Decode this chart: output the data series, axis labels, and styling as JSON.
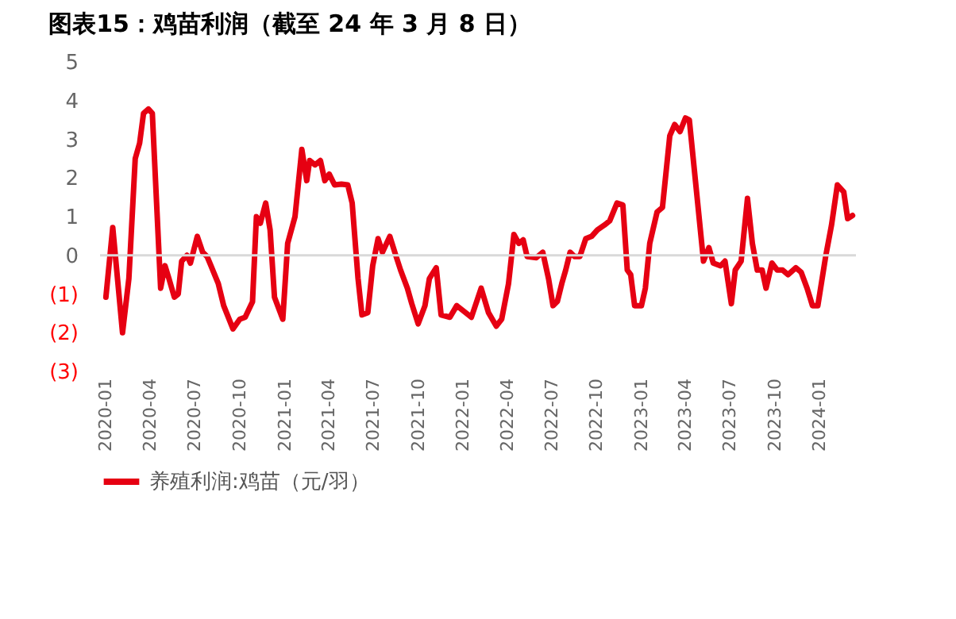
{
  "chart_data": {
    "type": "line",
    "title": "图表15：鸡苗利润（截至 24 年 3 月 8 日）",
    "x": [
      "2020-01-01",
      "2020-01-15",
      "2020-02-04",
      "2020-02-17",
      "2020-03-01",
      "2020-03-10",
      "2020-03-18",
      "2020-03-28",
      "2020-04-05",
      "2020-04-22",
      "2020-05-01",
      "2020-05-09",
      "2020-05-20",
      "2020-05-28",
      "2020-06-04",
      "2020-06-15",
      "2020-06-22",
      "2020-07-06",
      "2020-07-17",
      "2020-07-26",
      "2020-08-03",
      "2020-08-18",
      "2020-08-29",
      "2020-09-17",
      "2020-10-01",
      "2020-10-12",
      "2020-10-27",
      "2020-11-04",
      "2020-11-12",
      "2020-11-23",
      "2020-12-02",
      "2020-12-11",
      "2020-12-28",
      "2021-01-07",
      "2021-01-22",
      "2021-02-05",
      "2021-02-15",
      "2021-02-21",
      "2021-03-04",
      "2021-03-15",
      "2021-03-24",
      "2021-04-02",
      "2021-04-13",
      "2021-04-27",
      "2021-05-10",
      "2021-05-19",
      "2021-05-31",
      "2021-06-08",
      "2021-06-20",
      "2021-06-30",
      "2021-07-11",
      "2021-07-20",
      "2021-08-04",
      "2021-08-17",
      "2021-08-26",
      "2021-09-09",
      "2021-09-18",
      "2021-10-01",
      "2021-10-15",
      "2021-10-24",
      "2021-11-07",
      "2021-11-17",
      "2021-12-05",
      "2021-12-19",
      "2022-01-18",
      "2022-02-07",
      "2022-02-22",
      "2022-03-10",
      "2022-03-21",
      "2022-04-04",
      "2022-04-15",
      "2022-04-25",
      "2022-05-04",
      "2022-05-12",
      "2022-05-31",
      "2022-06-13",
      "2022-06-25",
      "2022-07-04",
      "2022-07-13",
      "2022-07-22",
      "2022-07-30",
      "2022-08-08",
      "2022-08-17",
      "2022-08-28",
      "2022-09-09",
      "2022-09-21",
      "2022-10-03",
      "2022-10-17",
      "2022-10-28",
      "2022-11-12",
      "2022-11-24",
      "2022-12-03",
      "2022-12-10",
      "2022-12-18",
      "2023-01-01",
      "2023-01-09",
      "2023-01-18",
      "2023-02-02",
      "2023-02-13",
      "2023-02-28",
      "2023-03-10",
      "2023-03-21",
      "2023-04-01",
      "2023-04-09",
      "2023-05-08",
      "2023-05-19",
      "2023-05-28",
      "2023-06-12",
      "2023-06-21",
      "2023-07-04",
      "2023-07-12",
      "2023-07-24",
      "2023-08-06",
      "2023-08-16",
      "2023-08-26",
      "2023-09-05",
      "2023-09-13",
      "2023-09-25",
      "2023-10-06",
      "2023-10-17",
      "2023-10-28",
      "2023-11-13",
      "2023-11-24",
      "2023-12-06",
      "2023-12-17",
      "2023-12-28",
      "2024-01-13",
      "2024-01-25",
      "2024-02-06",
      "2024-02-19",
      "2024-02-27",
      "2024-03-08"
    ],
    "series": [
      {
        "name": "养殖利润:鸡苗（元/羽）",
        "color": "#e60012",
        "values": [
          -1.08,
          0.72,
          -2.0,
          -0.6,
          2.5,
          2.9,
          3.67,
          3.78,
          3.67,
          -0.85,
          -0.27,
          -0.6,
          -1.08,
          -1.0,
          -0.15,
          0.0,
          -0.2,
          0.49,
          0.08,
          -0.03,
          -0.27,
          -0.73,
          -1.3,
          -1.9,
          -1.65,
          -1.6,
          -1.2,
          1.0,
          0.83,
          1.35,
          0.66,
          -1.08,
          -1.65,
          0.31,
          1.0,
          2.74,
          1.93,
          2.45,
          2.34,
          2.45,
          1.93,
          2.1,
          1.82,
          1.84,
          1.82,
          1.35,
          -0.6,
          -1.54,
          -1.48,
          -0.27,
          0.43,
          0.08,
          0.49,
          -0.03,
          -0.38,
          -0.85,
          -1.25,
          -1.77,
          -1.3,
          -0.6,
          -0.32,
          -1.54,
          -1.6,
          -1.3,
          -1.6,
          -0.85,
          -1.48,
          -1.83,
          -1.65,
          -0.73,
          0.54,
          0.31,
          0.4,
          -0.03,
          -0.06,
          0.08,
          -0.61,
          -1.3,
          -1.19,
          -0.73,
          -0.38,
          0.08,
          -0.03,
          -0.03,
          0.43,
          0.49,
          0.66,
          0.78,
          0.89,
          1.35,
          1.3,
          -0.38,
          -0.5,
          -1.3,
          -1.3,
          -0.85,
          0.31,
          1.12,
          1.24,
          3.09,
          3.38,
          3.2,
          3.55,
          3.5,
          -0.15,
          0.2,
          -0.2,
          -0.27,
          -0.15,
          -1.25,
          -0.38,
          -0.15,
          1.47,
          0.31,
          -0.38,
          -0.38,
          -0.85,
          -0.2,
          -0.38,
          -0.38,
          -0.5,
          -0.32,
          -0.44,
          -0.85,
          -1.3,
          -1.3,
          -0.03,
          0.78,
          1.82,
          1.64,
          0.95,
          1.03
        ]
      }
    ],
    "xlim": [
      "2019-12-20",
      "2024-03-15"
    ],
    "xticks": [
      "2020-01",
      "2020-04",
      "2020-07",
      "2020-10",
      "2021-01",
      "2021-04",
      "2021-07",
      "2021-10",
      "2022-01",
      "2022-04",
      "2022-07",
      "2022-10",
      "2023-01",
      "2023-04",
      "2023-07",
      "2023-10",
      "2024-01"
    ],
    "ylim": [
      -3,
      5
    ],
    "yticks": [
      {
        "value": -3,
        "label": "(3)"
      },
      {
        "value": -2,
        "label": "(2)"
      },
      {
        "value": -1,
        "label": "(1)"
      },
      0,
      1,
      2,
      3,
      4,
      5
    ],
    "ref_lines": [
      {
        "axis": "y",
        "value": 0,
        "color": "#d9d9d9"
      }
    ],
    "grid": false,
    "legend": "bottom",
    "line_style": "solid",
    "marker": "none"
  }
}
